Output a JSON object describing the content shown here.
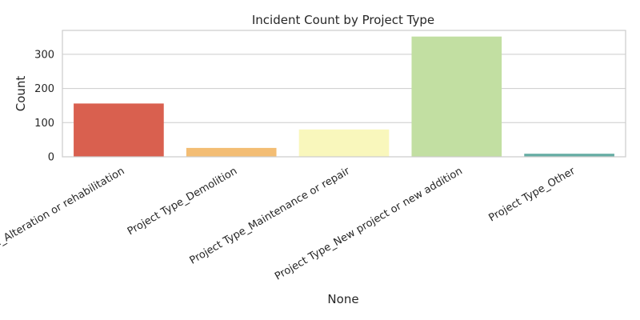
{
  "chart_data": {
    "type": "bar",
    "title": "Incident Count by Project Type",
    "xlabel": "None",
    "ylabel": "Count",
    "categories": [
      "Project Type_Alteration or rehabilitation",
      "Project Type_Demolition",
      "Project Type_Maintenance or repair",
      "Project Type_New project or new addition",
      "Project Type_Other"
    ],
    "values": [
      156,
      26,
      80,
      352,
      9
    ],
    "colors": [
      "#d9604f",
      "#f3bd74",
      "#f9f7bc",
      "#c2dfa2",
      "#66ada4"
    ],
    "ylim": [
      0,
      370
    ],
    "yticks": [
      0,
      100,
      200,
      300
    ],
    "grid": true,
    "legend": "none"
  }
}
